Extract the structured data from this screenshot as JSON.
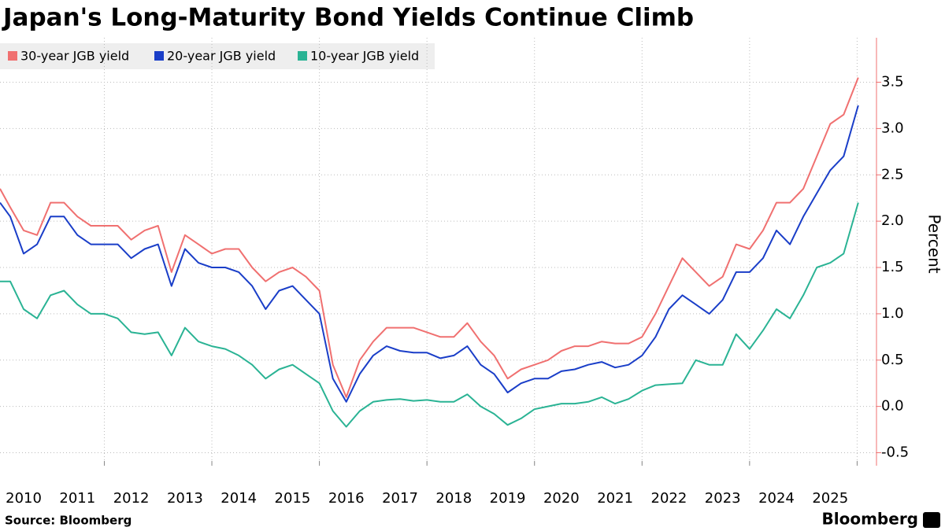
{
  "chart_data": {
    "type": "line",
    "title": "Japan's Long-Maturity Bond Yields Continue Climb",
    "y_label": "Percent",
    "source": "Source: Bloomberg",
    "logo": "Bloomberg",
    "x": [
      2010.06,
      2010.25,
      2010.5,
      2010.75,
      2011.0,
      2011.25,
      2011.5,
      2011.75,
      2012.0,
      2012.25,
      2012.5,
      2012.75,
      2013.0,
      2013.25,
      2013.5,
      2013.75,
      2014.0,
      2014.25,
      2014.5,
      2014.75,
      2015.0,
      2015.25,
      2015.5,
      2015.75,
      2016.0,
      2016.25,
      2016.5,
      2016.75,
      2017.0,
      2017.25,
      2017.5,
      2017.75,
      2018.0,
      2018.25,
      2018.5,
      2018.75,
      2019.0,
      2019.25,
      2019.5,
      2019.75,
      2020.0,
      2020.25,
      2020.5,
      2020.75,
      2021.0,
      2021.25,
      2021.5,
      2021.75,
      2022.0,
      2022.25,
      2022.5,
      2022.75,
      2023.0,
      2023.25,
      2023.5,
      2023.75,
      2024.0,
      2024.25,
      2024.5,
      2024.75,
      2025.0,
      2025.25,
      2025.5,
      2025.75,
      2026.02
    ],
    "series": [
      {
        "name": "30-year JGB yield",
        "color": "#f07070",
        "values": [
          2.35,
          2.15,
          1.9,
          1.85,
          2.2,
          2.2,
          2.05,
          1.95,
          1.95,
          1.95,
          1.8,
          1.9,
          1.95,
          1.45,
          1.85,
          1.75,
          1.65,
          1.7,
          1.7,
          1.5,
          1.35,
          1.45,
          1.5,
          1.4,
          1.25,
          0.45,
          0.1,
          0.5,
          0.7,
          0.85,
          0.85,
          0.85,
          0.8,
          0.75,
          0.75,
          0.9,
          0.7,
          0.55,
          0.3,
          0.4,
          0.45,
          0.5,
          0.6,
          0.65,
          0.65,
          0.7,
          0.68,
          0.68,
          0.75,
          1.0,
          1.3,
          1.6,
          1.45,
          1.3,
          1.4,
          1.75,
          1.7,
          1.9,
          2.2,
          2.2,
          2.35,
          2.7,
          3.05,
          3.15,
          3.55
        ]
      },
      {
        "name": "20-year JGB yield",
        "color": "#1a3ec8",
        "values": [
          2.2,
          2.05,
          1.65,
          1.75,
          2.05,
          2.05,
          1.85,
          1.75,
          1.75,
          1.75,
          1.6,
          1.7,
          1.75,
          1.3,
          1.7,
          1.55,
          1.5,
          1.5,
          1.45,
          1.3,
          1.05,
          1.25,
          1.3,
          1.15,
          1.0,
          0.3,
          0.05,
          0.35,
          0.55,
          0.65,
          0.6,
          0.58,
          0.58,
          0.52,
          0.55,
          0.65,
          0.45,
          0.35,
          0.15,
          0.25,
          0.3,
          0.3,
          0.38,
          0.4,
          0.45,
          0.48,
          0.42,
          0.45,
          0.55,
          0.75,
          1.05,
          1.2,
          1.1,
          1.0,
          1.15,
          1.45,
          1.45,
          1.6,
          1.9,
          1.75,
          2.05,
          2.3,
          2.55,
          2.7,
          3.25
        ]
      },
      {
        "name": "10-year JGB yield",
        "color": "#2ab394",
        "values": [
          1.35,
          1.35,
          1.05,
          0.95,
          1.2,
          1.25,
          1.1,
          1.0,
          1.0,
          0.95,
          0.8,
          0.78,
          0.8,
          0.55,
          0.85,
          0.7,
          0.65,
          0.62,
          0.55,
          0.45,
          0.3,
          0.4,
          0.45,
          0.35,
          0.25,
          -0.05,
          -0.22,
          -0.05,
          0.05,
          0.07,
          0.08,
          0.06,
          0.07,
          0.05,
          0.05,
          0.13,
          0.0,
          -0.08,
          -0.2,
          -0.13,
          -0.03,
          0.0,
          0.03,
          0.03,
          0.05,
          0.1,
          0.03,
          0.08,
          0.17,
          0.23,
          0.24,
          0.25,
          0.5,
          0.45,
          0.45,
          0.78,
          0.62,
          0.82,
          1.05,
          0.95,
          1.2,
          1.5,
          1.55,
          1.65,
          2.2
        ]
      }
    ],
    "xlim": [
      2010.06,
      2026.36
    ],
    "xticks": [
      {
        "value": 2010.5,
        "label": "2010"
      },
      {
        "value": 2011.5,
        "label": "2011"
      },
      {
        "value": 2012.5,
        "label": "2012"
      },
      {
        "value": 2013.5,
        "label": "2013"
      },
      {
        "value": 2014.5,
        "label": "2014"
      },
      {
        "value": 2015.5,
        "label": "2015"
      },
      {
        "value": 2016.5,
        "label": "2016"
      },
      {
        "value": 2017.5,
        "label": "2017"
      },
      {
        "value": 2018.5,
        "label": "2018"
      },
      {
        "value": 2019.5,
        "label": "2019"
      },
      {
        "value": 2020.5,
        "label": "2020"
      },
      {
        "value": 2021.5,
        "label": "2021"
      },
      {
        "value": 2022.5,
        "label": "2022"
      },
      {
        "value": 2023.5,
        "label": "2023"
      },
      {
        "value": 2024.5,
        "label": "2024"
      },
      {
        "value": 2025.5,
        "label": "2025"
      }
    ],
    "xgrid": [
      2012,
      2014,
      2016,
      2018,
      2020,
      2022,
      2024,
      2026
    ],
    "ylim": [
      -0.64,
      3.98
    ],
    "yticks": [
      {
        "value": -0.5,
        "label": "-0.5"
      },
      {
        "value": 0,
        "label": "0.0"
      },
      {
        "value": 0.5,
        "label": "0.5"
      },
      {
        "value": 1,
        "label": "1.0"
      },
      {
        "value": 1.5,
        "label": "1.5"
      },
      {
        "value": 2,
        "label": "2.0"
      },
      {
        "value": 2.5,
        "label": "2.5"
      },
      {
        "value": 3,
        "label": "3.0"
      },
      {
        "value": 3.5,
        "label": "3.5"
      }
    ],
    "axis_color": "#f07070",
    "grid": true
  }
}
